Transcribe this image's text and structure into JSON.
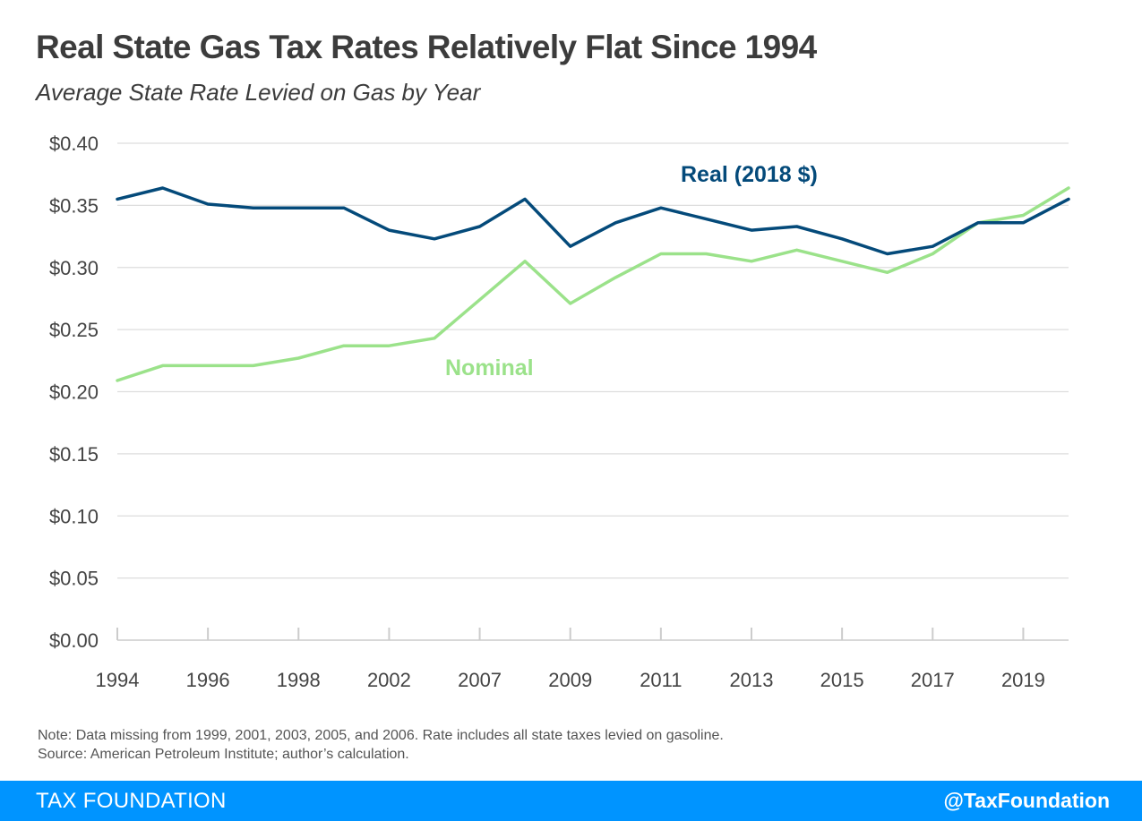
{
  "header": {
    "title": "Real State Gas Tax Rates Relatively Flat Since 1994",
    "subtitle": "Average State Rate Levied on Gas by Year"
  },
  "notes": {
    "note": "Note: Data missing from 1999, 2001, 2003, 2005, and 2006. Rate includes all state taxes levied on gasoline.",
    "source": "Source: American Petroleum Institute; author’s calculation."
  },
  "footer": {
    "brand": "TAX FOUNDATION",
    "handle": "@TaxFoundation"
  },
  "colors": {
    "real": "#044a7a",
    "nominal": "#9be28a",
    "grid": "#dddddd",
    "footer": "#0094ff"
  },
  "chart_data": {
    "type": "line",
    "title": "Real State Gas Tax Rates Relatively Flat Since 1994",
    "subtitle": "Average State Rate Levied on Gas by Year",
    "x": [
      "1994",
      "1995",
      "1996",
      "1997",
      "1998",
      "2000",
      "2002",
      "2004",
      "2007",
      "2008",
      "2009",
      "2010",
      "2011",
      "2012",
      "2013",
      "2014",
      "2015",
      "2016",
      "2017",
      "2018",
      "2019",
      "2020"
    ],
    "xtick_labels": [
      "1994",
      "1996",
      "1998",
      "2002",
      "2007",
      "2009",
      "2011",
      "2013",
      "2015",
      "2017",
      "2019"
    ],
    "ytick_labels": [
      "$0.00",
      "$0.05",
      "$0.10",
      "$0.15",
      "$0.20",
      "$0.25",
      "$0.30",
      "$0.35",
      "$0.40"
    ],
    "ylim": [
      0,
      0.4
    ],
    "grid": true,
    "series": [
      {
        "name": "Real (2018 $)",
        "color": "#044a7a",
        "values": [
          0.355,
          0.364,
          0.351,
          0.348,
          0.348,
          0.348,
          0.33,
          0.323,
          0.333,
          0.355,
          0.317,
          0.336,
          0.348,
          0.339,
          0.33,
          0.333,
          0.323,
          0.311,
          0.317,
          0.336,
          0.336,
          0.355
        ]
      },
      {
        "name": "Nominal",
        "color": "#9be28a",
        "values": [
          0.209,
          0.221,
          0.221,
          0.221,
          0.227,
          0.237,
          0.237,
          0.243,
          0.274,
          0.305,
          0.271,
          0.292,
          0.311,
          0.311,
          0.305,
          0.314,
          0.305,
          0.296,
          0.311,
          0.336,
          0.342,
          0.364
        ]
      }
    ]
  }
}
